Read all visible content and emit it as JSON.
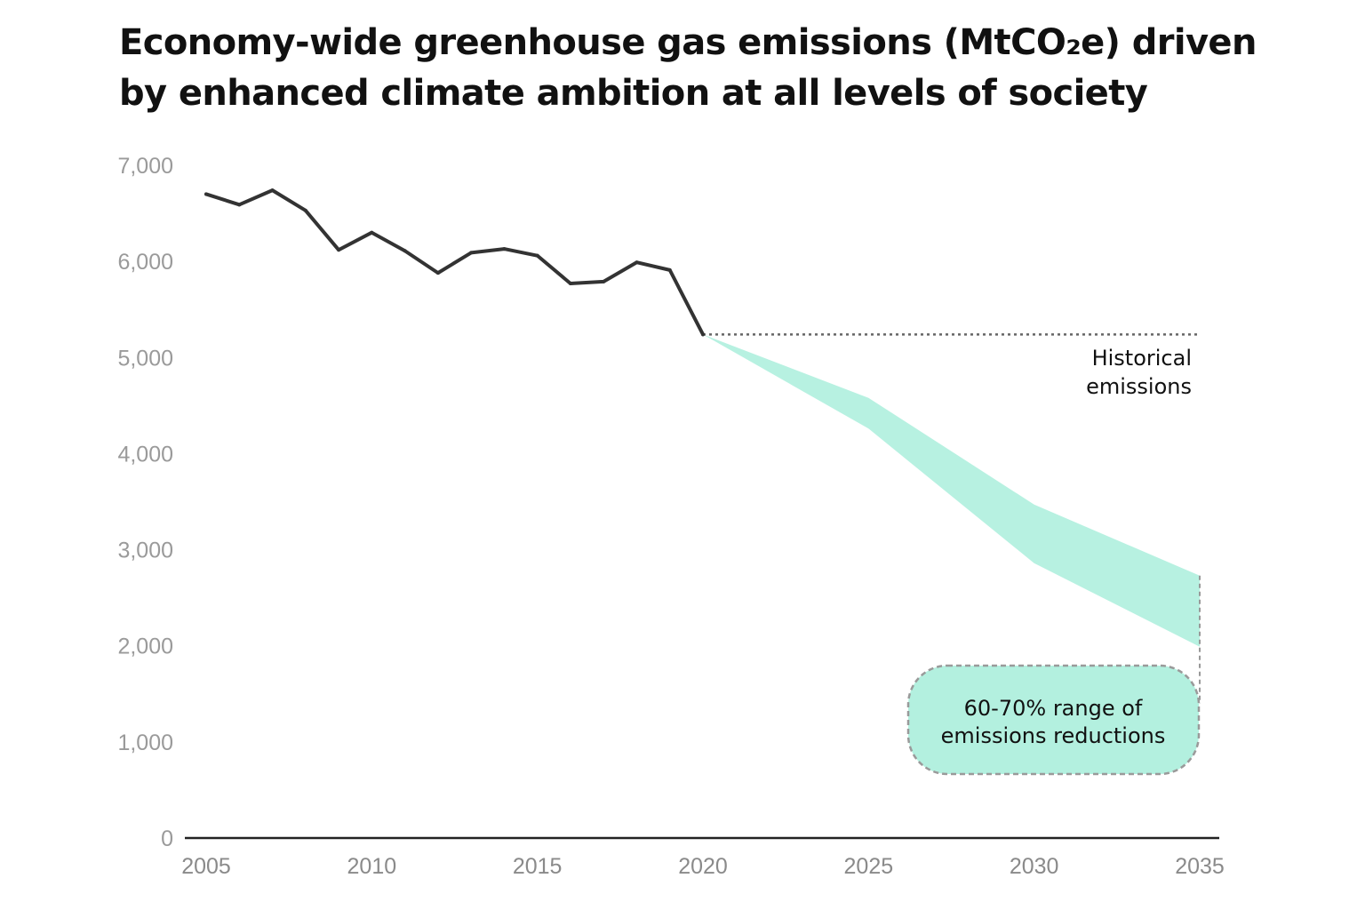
{
  "chart_data": {
    "type": "line",
    "title_line1": "Economy-wide greenhouse gas emissions (MtCO₂e) driven",
    "title_line2": "by enhanced climate ambition at all levels of society",
    "xlabel": "",
    "ylabel": "",
    "xlim": [
      2005,
      2035
    ],
    "ylim": [
      0,
      7000
    ],
    "x_ticks": [
      2005,
      2010,
      2015,
      2020,
      2025,
      2030,
      2035
    ],
    "x_tick_labels": [
      "2005",
      "2010",
      "2015",
      "2020",
      "2025",
      "2030",
      "2035"
    ],
    "y_ticks": [
      0,
      1000,
      2000,
      3000,
      4000,
      5000,
      6000,
      7000
    ],
    "y_tick_labels": [
      "0",
      "1,000",
      "2,000",
      "3,000",
      "4,000",
      "5,000",
      "6,000",
      "7,000"
    ],
    "grid": false,
    "series": [
      {
        "name": "Historical emissions",
        "color": "#333333",
        "x": [
          2005,
          2006,
          2007,
          2008,
          2009,
          2010,
          2011,
          2012,
          2013,
          2014,
          2015,
          2016,
          2017,
          2018,
          2019,
          2020
        ],
        "values": [
          6700,
          6590,
          6740,
          6530,
          6120,
          6300,
          6110,
          5880,
          6090,
          6130,
          6060,
          5770,
          5790,
          5990,
          5910,
          5240
        ]
      }
    ],
    "reference_line": {
      "label": "Historical emissions",
      "label_line1": "Historical",
      "label_line2": "emissions",
      "y": 5240,
      "x_from": 2020,
      "x_to": 2035,
      "color": "#666666"
    },
    "target_range": {
      "label": "60-70% range of emissions reductions",
      "label_line1": "60-70% range of",
      "label_line2": "emissions reductions",
      "color": "#b3f0df",
      "x": [
        2020,
        2025,
        2030,
        2035
      ],
      "upper": [
        5240,
        4580,
        3470,
        2730
      ],
      "lower": [
        5240,
        4260,
        2860,
        1990
      ]
    }
  }
}
